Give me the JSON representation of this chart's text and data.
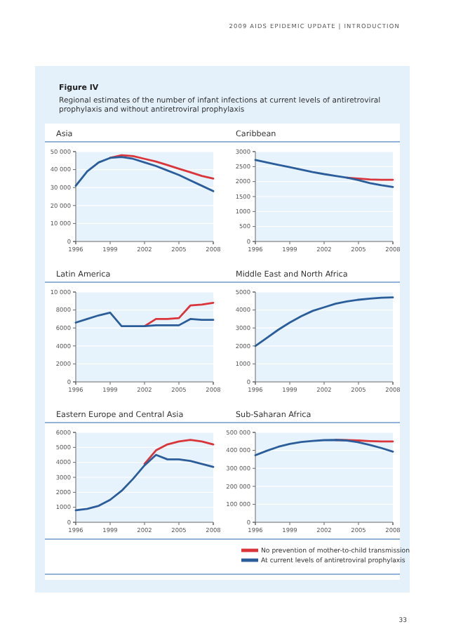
{
  "chart_data": [
    {
      "type": "line",
      "title": "Asia",
      "annotations": [
        "2009 AIDS EPIDEMIC UPDATE | INTRODUCTION",
        "Figure IV",
        "Regional estimates of the number of infant infections at current levels of antiretroviral prophylaxis and without antiretroviral prophylaxis",
        "33"
      ],
      "x": [
        1996,
        1997,
        1998,
        1999,
        2000,
        2001,
        2002,
        2003,
        2004,
        2005,
        2006,
        2007,
        2008
      ],
      "xlim": [
        1996,
        2008
      ],
      "xticks": [
        1996,
        1999,
        2002,
        2005,
        2008
      ],
      "ylim": [
        0,
        50000
      ],
      "yticks": [
        0,
        {
          "value": 10000,
          "label": "10 000"
        },
        {
          "value": 20000,
          "label": "20 000"
        },
        {
          "value": 30000,
          "label": "30 000"
        },
        {
          "value": 40000,
          "label": "40 000"
        },
        {
          "value": 50000,
          "label": "50 000"
        }
      ],
      "grid": "y",
      "series": [
        {
          "color": "#d9353a",
          "values": [
            null,
            null,
            null,
            46500,
            48000,
            47500,
            46000,
            44500,
            42500,
            40500,
            38500,
            36500,
            35000
          ]
        },
        {
          "color": "#2b5d9b",
          "values": [
            31000,
            39000,
            44000,
            46500,
            47000,
            46000,
            44000,
            42000,
            39500,
            37000,
            34000,
            31000,
            28000
          ]
        }
      ]
    },
    {
      "type": "line",
      "title": "Caribbean",
      "x": [
        1996,
        1997,
        1998,
        1999,
        2000,
        2001,
        2002,
        2003,
        2004,
        2005,
        2006,
        2007,
        2008
      ],
      "xlim": [
        1996,
        2008
      ],
      "xticks": [
        1996,
        1999,
        2002,
        2005,
        2008
      ],
      "ylim": [
        0,
        3000
      ],
      "yticks": [
        0,
        500,
        1000,
        1500,
        2000,
        2500,
        3000
      ],
      "grid": "y",
      "series": [
        {
          "color": "#d9353a",
          "values": [
            null,
            null,
            null,
            null,
            null,
            null,
            null,
            null,
            2130,
            2100,
            2070,
            2060,
            2060
          ]
        },
        {
          "color": "#2b5d9b",
          "values": [
            2720,
            2640,
            2560,
            2480,
            2400,
            2320,
            2250,
            2190,
            2130,
            2050,
            1950,
            1880,
            1820
          ]
        }
      ]
    },
    {
      "type": "line",
      "title": "Latin America",
      "x": [
        1996,
        1997,
        1998,
        1999,
        2000,
        2001,
        2002,
        2003,
        2004,
        2005,
        2006,
        2007,
        2008
      ],
      "xlim": [
        1996,
        2008
      ],
      "xticks": [
        1996,
        1999,
        2002,
        2005,
        2008
      ],
      "ylim": [
        0,
        10000
      ],
      "yticks": [
        0,
        2000,
        4000,
        6000,
        8000,
        {
          "value": 10000,
          "label": "10 000"
        }
      ],
      "grid": "y",
      "series": [
        {
          "color": "#d9353a",
          "values": [
            null,
            null,
            null,
            null,
            null,
            null,
            6200,
            7000,
            7000,
            7100,
            8500,
            8600,
            8800
          ]
        },
        {
          "color": "#2b5d9b",
          "values": [
            6600,
            7000,
            7400,
            7700,
            6200,
            6200,
            6200,
            6300,
            6300,
            6300,
            7000,
            6900,
            6900
          ]
        }
      ]
    },
    {
      "type": "line",
      "title": "Middle East and North Africa",
      "x": [
        1996,
        1997,
        1998,
        1999,
        2000,
        2001,
        2002,
        2003,
        2004,
        2005,
        2006,
        2007,
        2008
      ],
      "xlim": [
        1996,
        2008
      ],
      "xticks": [
        1996,
        1999,
        2002,
        2005,
        2008
      ],
      "ylim": [
        0,
        5000
      ],
      "yticks": [
        0,
        1000,
        2000,
        3000,
        4000,
        5000
      ],
      "grid": "y",
      "series": [
        {
          "color": "#2b5d9b",
          "values": [
            2000,
            2450,
            2900,
            3300,
            3650,
            3950,
            4150,
            4350,
            4480,
            4570,
            4630,
            4680,
            4700
          ]
        }
      ]
    },
    {
      "type": "line",
      "title": "Eastern Europe and Central Asia",
      "x": [
        1996,
        1997,
        1998,
        1999,
        2000,
        2001,
        2002,
        2003,
        2004,
        2005,
        2006,
        2007,
        2008
      ],
      "xlim": [
        1996,
        2008
      ],
      "xticks": [
        1996,
        1999,
        2002,
        2005,
        2008
      ],
      "ylim": [
        0,
        6000
      ],
      "yticks": [
        0,
        1000,
        2000,
        3000,
        4000,
        5000,
        6000
      ],
      "grid": "y",
      "series": [
        {
          "color": "#d9353a",
          "values": [
            null,
            null,
            null,
            null,
            null,
            null,
            3900,
            4800,
            5200,
            5400,
            5500,
            5400,
            5200
          ]
        },
        {
          "color": "#2b5d9b",
          "values": [
            800,
            900,
            1100,
            1500,
            2100,
            2900,
            3800,
            4500,
            4200,
            4200,
            4100,
            3900,
            3700
          ]
        }
      ]
    },
    {
      "type": "line",
      "title": "Sub-Saharan Africa",
      "x": [
        1996,
        1997,
        1998,
        1999,
        2000,
        2001,
        2002,
        2003,
        2004,
        2005,
        2006,
        2007,
        2008
      ],
      "xlim": [
        1996,
        2008
      ],
      "xticks": [
        1996,
        1999,
        2002,
        2005,
        2008
      ],
      "ylim": [
        0,
        500000
      ],
      "yticks": [
        0,
        {
          "value": 100000,
          "label": "100 000"
        },
        {
          "value": 200000,
          "label": "200 000"
        },
        {
          "value": 300000,
          "label": "300 000"
        },
        {
          "value": 400000,
          "label": "400 000"
        },
        {
          "value": 500000,
          "label": "500 000"
        }
      ],
      "grid": "y",
      "legend": "bottom",
      "series": [
        {
          "name": "No prevention of mother-to-child transmission",
          "color": "#d9353a",
          "values": [
            null,
            null,
            null,
            null,
            null,
            null,
            null,
            458000,
            457000,
            455000,
            452000,
            450000,
            450000
          ]
        },
        {
          "name": "At current levels of antiretroviral prophylaxis",
          "color": "#2b5d9b",
          "values": [
            373000,
            398000,
            420000,
            436000,
            447000,
            453000,
            457000,
            458000,
            455000,
            445000,
            430000,
            413000,
            393000
          ]
        }
      ]
    }
  ]
}
